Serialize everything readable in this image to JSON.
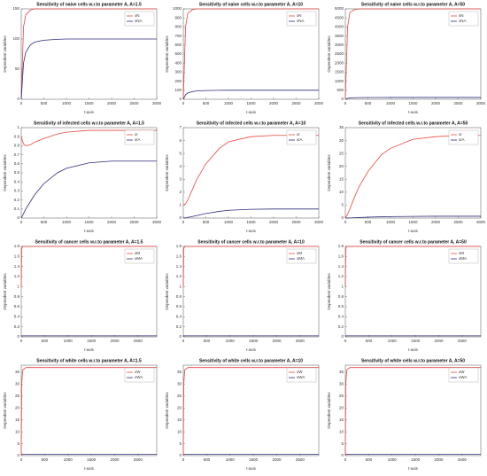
{
  "chart_data": [
    {
      "type": "line",
      "title": "Sensitivity of naive cells w.r.to parameter A, A=1.5",
      "x_label": "t-axis",
      "y_label": "Dependent variables",
      "x": [
        0,
        50,
        100,
        200,
        300,
        500,
        800,
        1000,
        1500,
        2000,
        2500,
        3000
      ],
      "xlim": [
        0,
        3000
      ],
      "xticks": [
        0,
        500,
        1000,
        1500,
        2000,
        2500,
        3000
      ],
      "ylim": [
        0,
        150
      ],
      "yticks": [
        0,
        50,
        100,
        150
      ],
      "series": [
        {
          "name": "xN",
          "color": "#e8473c",
          "values": [
            0,
            120,
            140,
            148,
            150,
            150,
            150,
            150,
            150,
            150,
            150,
            150
          ]
        },
        {
          "name": "xNA",
          "color": "#2b2b7a",
          "values": [
            0,
            60,
            78,
            90,
            95,
            98,
            99.5,
            100,
            100,
            100,
            100,
            100
          ]
        }
      ]
    },
    {
      "type": "line",
      "title": "Sensitivity of naive cells w.r.to parameter A, A=10",
      "x_label": "t-axis",
      "y_label": "Dependent variables",
      "x": [
        0,
        50,
        100,
        200,
        300,
        500,
        800,
        1000,
        1500,
        2000,
        2500,
        3000
      ],
      "xlim": [
        0,
        3000
      ],
      "xticks": [
        0,
        500,
        1000,
        1500,
        2000,
        2500,
        3000
      ],
      "ylim": [
        0,
        1000
      ],
      "yticks": [
        0,
        100,
        200,
        300,
        400,
        500,
        600,
        700,
        800,
        900,
        1000
      ],
      "series": [
        {
          "name": "xN",
          "color": "#e8473c",
          "values": [
            0,
            800,
            950,
            990,
            1000,
            1000,
            1000,
            1000,
            1000,
            1000,
            1000,
            1000
          ]
        },
        {
          "name": "xNA",
          "color": "#2b2b7a",
          "values": [
            0,
            50,
            70,
            85,
            92,
            97,
            99,
            100,
            100,
            100,
            100,
            100
          ]
        }
      ]
    },
    {
      "type": "line",
      "title": "Sensitivity of naive cells w.r.to parameter A, A=50",
      "x_label": "t-axis",
      "y_label": "Dependent variables",
      "x": [
        0,
        50,
        100,
        200,
        300,
        500,
        800,
        1000,
        1500,
        2000,
        2500,
        3000
      ],
      "xlim": [
        0,
        3000
      ],
      "xticks": [
        0,
        500,
        1000,
        1500,
        2000,
        2500,
        3000
      ],
      "ylim": [
        0,
        5000
      ],
      "yticks": [
        0,
        500,
        1000,
        1500,
        2000,
        2500,
        3000,
        3500,
        4000,
        4500,
        5000
      ],
      "series": [
        {
          "name": "xN",
          "color": "#e8473c",
          "values": [
            0,
            4000,
            4800,
            4950,
            5000,
            5000,
            5000,
            5000,
            5000,
            5000,
            5000,
            5000
          ]
        },
        {
          "name": "xNA",
          "color": "#2b2b7a",
          "values": [
            0,
            50,
            70,
            85,
            92,
            97,
            99,
            100,
            100,
            100,
            100,
            100
          ]
        }
      ]
    },
    {
      "type": "line",
      "title": "Sensitivity of infected cells w.r.to parameter A, A=1.5",
      "x_label": "t-axis",
      "y_label": "Dependent variables",
      "x": [
        0,
        50,
        100,
        200,
        300,
        500,
        800,
        1000,
        1500,
        2000,
        2500,
        3000
      ],
      "xlim": [
        0,
        3000
      ],
      "xticks": [
        0,
        500,
        1000,
        1500,
        2000,
        2500,
        3000
      ],
      "ylim": [
        0,
        1
      ],
      "yticks": [
        0,
        0.1,
        0.2,
        0.3,
        0.4,
        0.5,
        0.6,
        0.7,
        0.8,
        0.9,
        1
      ],
      "series": [
        {
          "name": "xI",
          "color": "#e8473c",
          "values": [
            0.9,
            0.82,
            0.8,
            0.81,
            0.84,
            0.88,
            0.93,
            0.95,
            0.97,
            0.97,
            0.97,
            0.97
          ]
        },
        {
          "name": "xIA",
          "color": "#2b2b7a",
          "values": [
            0,
            0.05,
            0.1,
            0.18,
            0.26,
            0.38,
            0.5,
            0.55,
            0.61,
            0.63,
            0.63,
            0.63
          ]
        }
      ]
    },
    {
      "type": "line",
      "title": "Sensitivity of infected cells w.r.to parameter A, A=10",
      "x_label": "t-axis",
      "y_label": "Dependent variables",
      "x": [
        0,
        50,
        100,
        200,
        300,
        500,
        800,
        1000,
        1500,
        2000,
        2500,
        3000
      ],
      "xlim": [
        0,
        3000
      ],
      "xticks": [
        0,
        500,
        1000,
        1500,
        2000,
        2500,
        3000
      ],
      "ylim": [
        0,
        7
      ],
      "yticks": [
        0,
        1,
        2,
        3,
        4,
        5,
        6,
        7
      ],
      "series": [
        {
          "name": "xI",
          "color": "#e8473c",
          "values": [
            1,
            1.1,
            1.4,
            2.2,
            3,
            4.2,
            5.4,
            5.9,
            6.3,
            6.4,
            6.4,
            6.4
          ]
        },
        {
          "name": "xIA",
          "color": "#2b2b7a",
          "values": [
            0,
            0.02,
            0.05,
            0.12,
            0.2,
            0.35,
            0.52,
            0.6,
            0.68,
            0.7,
            0.7,
            0.7
          ]
        }
      ]
    },
    {
      "type": "line",
      "title": "Sensitivity of infected cells w.r.to parameter A, A=50",
      "x_label": "t-axis",
      "y_label": "Dependent variables",
      "x": [
        0,
        50,
        100,
        200,
        300,
        500,
        800,
        1000,
        1500,
        2000,
        2500,
        3000
      ],
      "xlim": [
        0,
        3000
      ],
      "xticks": [
        0,
        500,
        1000,
        1500,
        2000,
        2500,
        3000
      ],
      "ylim": [
        0,
        35
      ],
      "yticks": [
        0,
        5,
        10,
        15,
        20,
        25,
        30,
        35
      ],
      "series": [
        {
          "name": "xI",
          "color": "#e8473c",
          "values": [
            0,
            1.5,
            3.5,
            8,
            12,
            18,
            24.5,
            27,
            30.5,
            31.5,
            32,
            32
          ]
        },
        {
          "name": "xIA",
          "color": "#2b2b7a",
          "values": [
            0,
            0.02,
            0.05,
            0.12,
            0.2,
            0.35,
            0.5,
            0.55,
            0.65,
            0.7,
            0.7,
            0.7
          ]
        }
      ]
    },
    {
      "type": "line",
      "title": "Sensitivity of cancer cells w.r.to parameter A, A=1.5",
      "x_label": "t-axis",
      "y_label": "Dependent variables",
      "x": [
        0,
        10,
        30,
        100,
        500,
        1000,
        1500,
        2000,
        2500,
        2900
      ],
      "xlim": [
        0,
        2900
      ],
      "xticks": [
        0,
        500,
        1000,
        1500,
        2000,
        2500
      ],
      "ylim": [
        0,
        1.8
      ],
      "yticks": [
        0,
        0.2,
        0.4,
        0.6,
        0.8,
        1,
        1.2,
        1.4,
        1.6,
        1.8
      ],
      "series": [
        {
          "name": "xM",
          "color": "#e8473c",
          "values": [
            1,
            1.75,
            1.8,
            1.8,
            1.8,
            1.8,
            1.8,
            1.8,
            1.8,
            1.8
          ]
        },
        {
          "name": "xMA",
          "color": "#2b2b7a",
          "values": [
            0.02,
            0.02,
            0.02,
            0.02,
            0.02,
            0.02,
            0.02,
            0.02,
            0.02,
            0.02
          ]
        }
      ]
    },
    {
      "type": "line",
      "title": "Sensitivity of cancer cells w.r.to parameter A, A=10",
      "x_label": "t-axis",
      "y_label": "Dependent variables",
      "x": [
        0,
        10,
        30,
        100,
        500,
        1000,
        1500,
        2000,
        2500,
        2900
      ],
      "xlim": [
        0,
        2900
      ],
      "xticks": [
        0,
        500,
        1000,
        1500,
        2000,
        2500
      ],
      "ylim": [
        0,
        1.8
      ],
      "yticks": [
        0,
        0.2,
        0.4,
        0.6,
        0.8,
        1,
        1.2,
        1.4,
        1.6,
        1.8
      ],
      "series": [
        {
          "name": "xM",
          "color": "#e8473c",
          "values": [
            1,
            1.75,
            1.8,
            1.8,
            1.8,
            1.8,
            1.8,
            1.8,
            1.8,
            1.8
          ]
        },
        {
          "name": "xMA",
          "color": "#2b2b7a",
          "values": [
            0.02,
            0.02,
            0.02,
            0.02,
            0.02,
            0.02,
            0.02,
            0.02,
            0.02,
            0.02
          ]
        }
      ]
    },
    {
      "type": "line",
      "title": "Sensitivity of cancer cells w.r.to parameter A, A=50",
      "x_label": "t-axis",
      "y_label": "Dependent variables",
      "x": [
        0,
        10,
        30,
        100,
        500,
        1000,
        1500,
        2000,
        2500,
        2900
      ],
      "xlim": [
        0,
        2900
      ],
      "xticks": [
        0,
        500,
        1000,
        1500,
        2000,
        2500
      ],
      "ylim": [
        0,
        1.8
      ],
      "yticks": [
        0,
        0.2,
        0.4,
        0.6,
        0.8,
        1,
        1.2,
        1.4,
        1.6,
        1.8
      ],
      "series": [
        {
          "name": "xM",
          "color": "#e8473c",
          "values": [
            1,
            1.75,
            1.8,
            1.8,
            1.8,
            1.8,
            1.8,
            1.8,
            1.8,
            1.8
          ]
        },
        {
          "name": "xMA",
          "color": "#2b2b7a",
          "values": [
            0.02,
            0.02,
            0.02,
            0.02,
            0.02,
            0.02,
            0.02,
            0.02,
            0.02,
            0.02
          ]
        }
      ]
    },
    {
      "type": "line",
      "title": "Sensitivity of white cells w.r.to parameter A, A=1.5",
      "x_label": "t-axis",
      "y_label": "Dependent variables",
      "x": [
        0,
        10,
        30,
        100,
        500,
        1000,
        1500,
        2000,
        2500,
        2900
      ],
      "xlim": [
        0,
        2900
      ],
      "xticks": [
        0,
        500,
        1000,
        1500,
        2000,
        2500
      ],
      "ylim": [
        0,
        38
      ],
      "yticks": [
        0,
        5,
        10,
        15,
        20,
        25,
        30,
        35
      ],
      "series": [
        {
          "name": "xW",
          "color": "#e8473c",
          "values": [
            0,
            30,
            36,
            37,
            37,
            37,
            37,
            37,
            37,
            37
          ]
        },
        {
          "name": "xWA",
          "color": "#2b2b7a",
          "values": [
            0.5,
            0.5,
            0.5,
            0.5,
            0.5,
            0.5,
            0.5,
            0.5,
            0.5,
            0.5
          ]
        }
      ]
    },
    {
      "type": "line",
      "title": "Sensitivity of white cells w.r.to parameter A, A=10",
      "x_label": "t-axis",
      "y_label": "Dependent variables",
      "x": [
        0,
        10,
        30,
        100,
        500,
        1000,
        1500,
        2000,
        2500,
        2900
      ],
      "xlim": [
        0,
        2900
      ],
      "xticks": [
        0,
        500,
        1000,
        1500,
        2000,
        2500
      ],
      "ylim": [
        0,
        38
      ],
      "yticks": [
        0,
        5,
        10,
        15,
        20,
        25,
        30,
        35
      ],
      "series": [
        {
          "name": "xW",
          "color": "#e8473c",
          "values": [
            0,
            30,
            36,
            37,
            37,
            37,
            37,
            37,
            37,
            37
          ]
        },
        {
          "name": "xWA",
          "color": "#2b2b7a",
          "values": [
            0.5,
            0.5,
            0.5,
            0.5,
            0.5,
            0.5,
            0.5,
            0.5,
            0.5,
            0.5
          ]
        }
      ]
    },
    {
      "type": "line",
      "title": "Sensitivity of white cells w.r.to parameter A, A=50",
      "x_label": "t-axis",
      "y_label": "Dependent variables",
      "x": [
        0,
        10,
        30,
        100,
        500,
        1000,
        1500,
        2000,
        2500,
        2900
      ],
      "xlim": [
        0,
        2900
      ],
      "xticks": [
        0,
        500,
        1000,
        1500,
        2000,
        2500
      ],
      "ylim": [
        0,
        38
      ],
      "yticks": [
        0,
        5,
        10,
        15,
        20,
        25,
        30,
        35
      ],
      "series": [
        {
          "name": "xW",
          "color": "#e8473c",
          "values": [
            0,
            30,
            36,
            37,
            37,
            37,
            37,
            37,
            37,
            37
          ]
        },
        {
          "name": "xWA",
          "color": "#2b2b7a",
          "values": [
            0.5,
            0.5,
            0.5,
            0.5,
            0.5,
            0.5,
            0.5,
            0.5,
            0.5,
            0.5
          ]
        }
      ]
    }
  ]
}
